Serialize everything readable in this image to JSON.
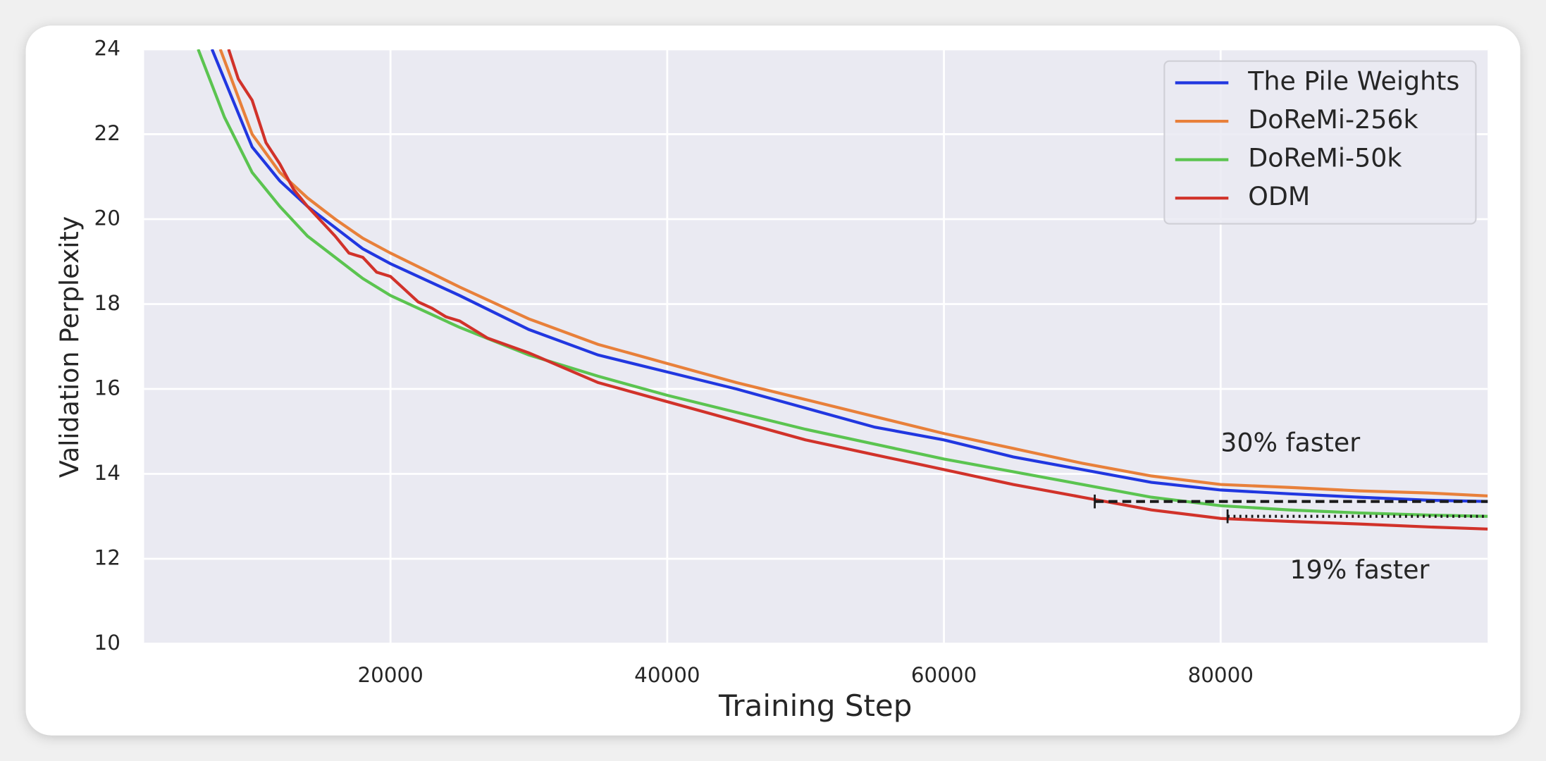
{
  "chart_data": {
    "type": "line",
    "xlabel": "Training Step",
    "ylabel": "Validation Perplexity",
    "xlim": [
      2190,
      99300
    ],
    "ylim": [
      10,
      24
    ],
    "xticks": [
      20000,
      40000,
      60000,
      80000
    ],
    "yticks": [
      10,
      12,
      14,
      16,
      18,
      20,
      22,
      24
    ],
    "grid": true,
    "legend": "upper right",
    "series": [
      {
        "name": "The Pile Weights",
        "color": "#2137e0",
        "x": [
          7100,
          10000,
          12000,
          14000,
          16000,
          18000,
          20000,
          25000,
          30000,
          35000,
          40000,
          45000,
          50000,
          55000,
          60000,
          65000,
          70000,
          75000,
          80000,
          85000,
          90000,
          95000,
          99300
        ],
        "values": [
          24,
          21.7,
          20.9,
          20.3,
          19.8,
          19.3,
          18.95,
          18.2,
          17.4,
          16.8,
          16.4,
          16.0,
          15.55,
          15.1,
          14.8,
          14.4,
          14.1,
          13.8,
          13.62,
          13.53,
          13.45,
          13.38,
          13.35
        ]
      },
      {
        "name": "DoReMi-256k",
        "color": "#e8803a",
        "x": [
          7700,
          10000,
          12000,
          14000,
          16000,
          18000,
          20000,
          25000,
          30000,
          35000,
          40000,
          45000,
          50000,
          55000,
          60000,
          65000,
          70000,
          75000,
          80000,
          85000,
          90000,
          95000,
          99300
        ],
        "values": [
          24,
          22.0,
          21.1,
          20.5,
          20.0,
          19.55,
          19.2,
          18.4,
          17.65,
          17.05,
          16.6,
          16.15,
          15.75,
          15.35,
          14.95,
          14.6,
          14.25,
          13.95,
          13.75,
          13.68,
          13.6,
          13.55,
          13.48
        ]
      },
      {
        "name": "DoReMi-50k",
        "color": "#5bc450",
        "x": [
          6100,
          8000,
          10000,
          12000,
          14000,
          16000,
          18000,
          20000,
          25000,
          30000,
          35000,
          40000,
          45000,
          50000,
          55000,
          60000,
          65000,
          70000,
          75000,
          80000,
          85000,
          90000,
          95000,
          99300
        ],
        "values": [
          24,
          22.4,
          21.1,
          20.3,
          19.6,
          19.1,
          18.6,
          18.2,
          17.45,
          16.8,
          16.3,
          15.85,
          15.45,
          15.05,
          14.7,
          14.35,
          14.05,
          13.75,
          13.45,
          13.25,
          13.15,
          13.08,
          13.03,
          13.0
        ]
      },
      {
        "name": "ODM",
        "color": "#d1322a",
        "x": [
          8300,
          9000,
          10000,
          11000,
          12000,
          13000,
          14000,
          16000,
          17000,
          18000,
          19000,
          20000,
          21000,
          22000,
          23000,
          24000,
          25000,
          26000,
          27000,
          30000,
          35000,
          40000,
          45000,
          50000,
          55000,
          60000,
          65000,
          70000,
          75000,
          80000,
          85000,
          90000,
          95000,
          99300
        ],
        "values": [
          24,
          23.3,
          22.8,
          21.8,
          21.3,
          20.7,
          20.3,
          19.6,
          19.2,
          19.1,
          18.75,
          18.65,
          18.35,
          18.05,
          17.9,
          17.7,
          17.6,
          17.4,
          17.2,
          16.85,
          16.15,
          15.7,
          15.25,
          14.8,
          14.45,
          14.1,
          13.75,
          13.45,
          13.15,
          12.95,
          12.88,
          12.82,
          12.75,
          12.7
        ]
      }
    ],
    "reference_lines": [
      {
        "x": [
          70900,
          99300
        ],
        "y": 13.35,
        "style": "dashed"
      },
      {
        "x": [
          80500,
          99300
        ],
        "y": 13.0,
        "style": "dotted"
      }
    ],
    "annotations": [
      {
        "text": "30% faster",
        "x": 80000,
        "y": 14.7
      },
      {
        "text": "19% faster",
        "x": 85000,
        "y": 11.7
      }
    ]
  }
}
